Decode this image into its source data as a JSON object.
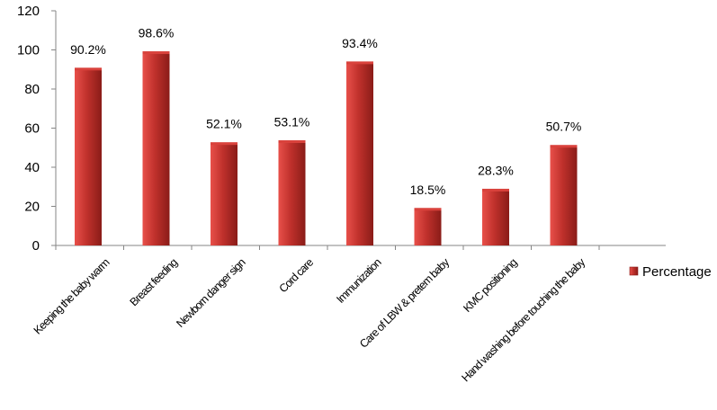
{
  "chart_data": {
    "type": "bar",
    "categories": [
      "Keeping the baby warm",
      "Breast feeding",
      "Newborn danger sign",
      "Cord care",
      "Immunization",
      "Care of LBW & pretem baby",
      "KMC positioning",
      "Hand washing before touching the baby"
    ],
    "series": [
      {
        "name": "Percentage",
        "values": [
          90.2,
          98.6,
          52.1,
          53.1,
          93.4,
          18.5,
          28.3,
          50.7
        ],
        "data_labels": [
          "90.2%",
          "98.6%",
          "52.1%",
          "53.1%",
          "93.4%",
          "18.5%",
          "28.3%",
          "50.7%"
        ]
      }
    ],
    "ylim": [
      0,
      120
    ],
    "yticks": [
      "0",
      "20",
      "40",
      "60",
      "80",
      "100",
      "120"
    ],
    "grid": false,
    "legend_position": "right",
    "colors": {
      "bar_light": "#e8504a",
      "bar_mid": "#c0312c",
      "bar_dark": "#8a1c18",
      "axis": "#868686"
    }
  }
}
